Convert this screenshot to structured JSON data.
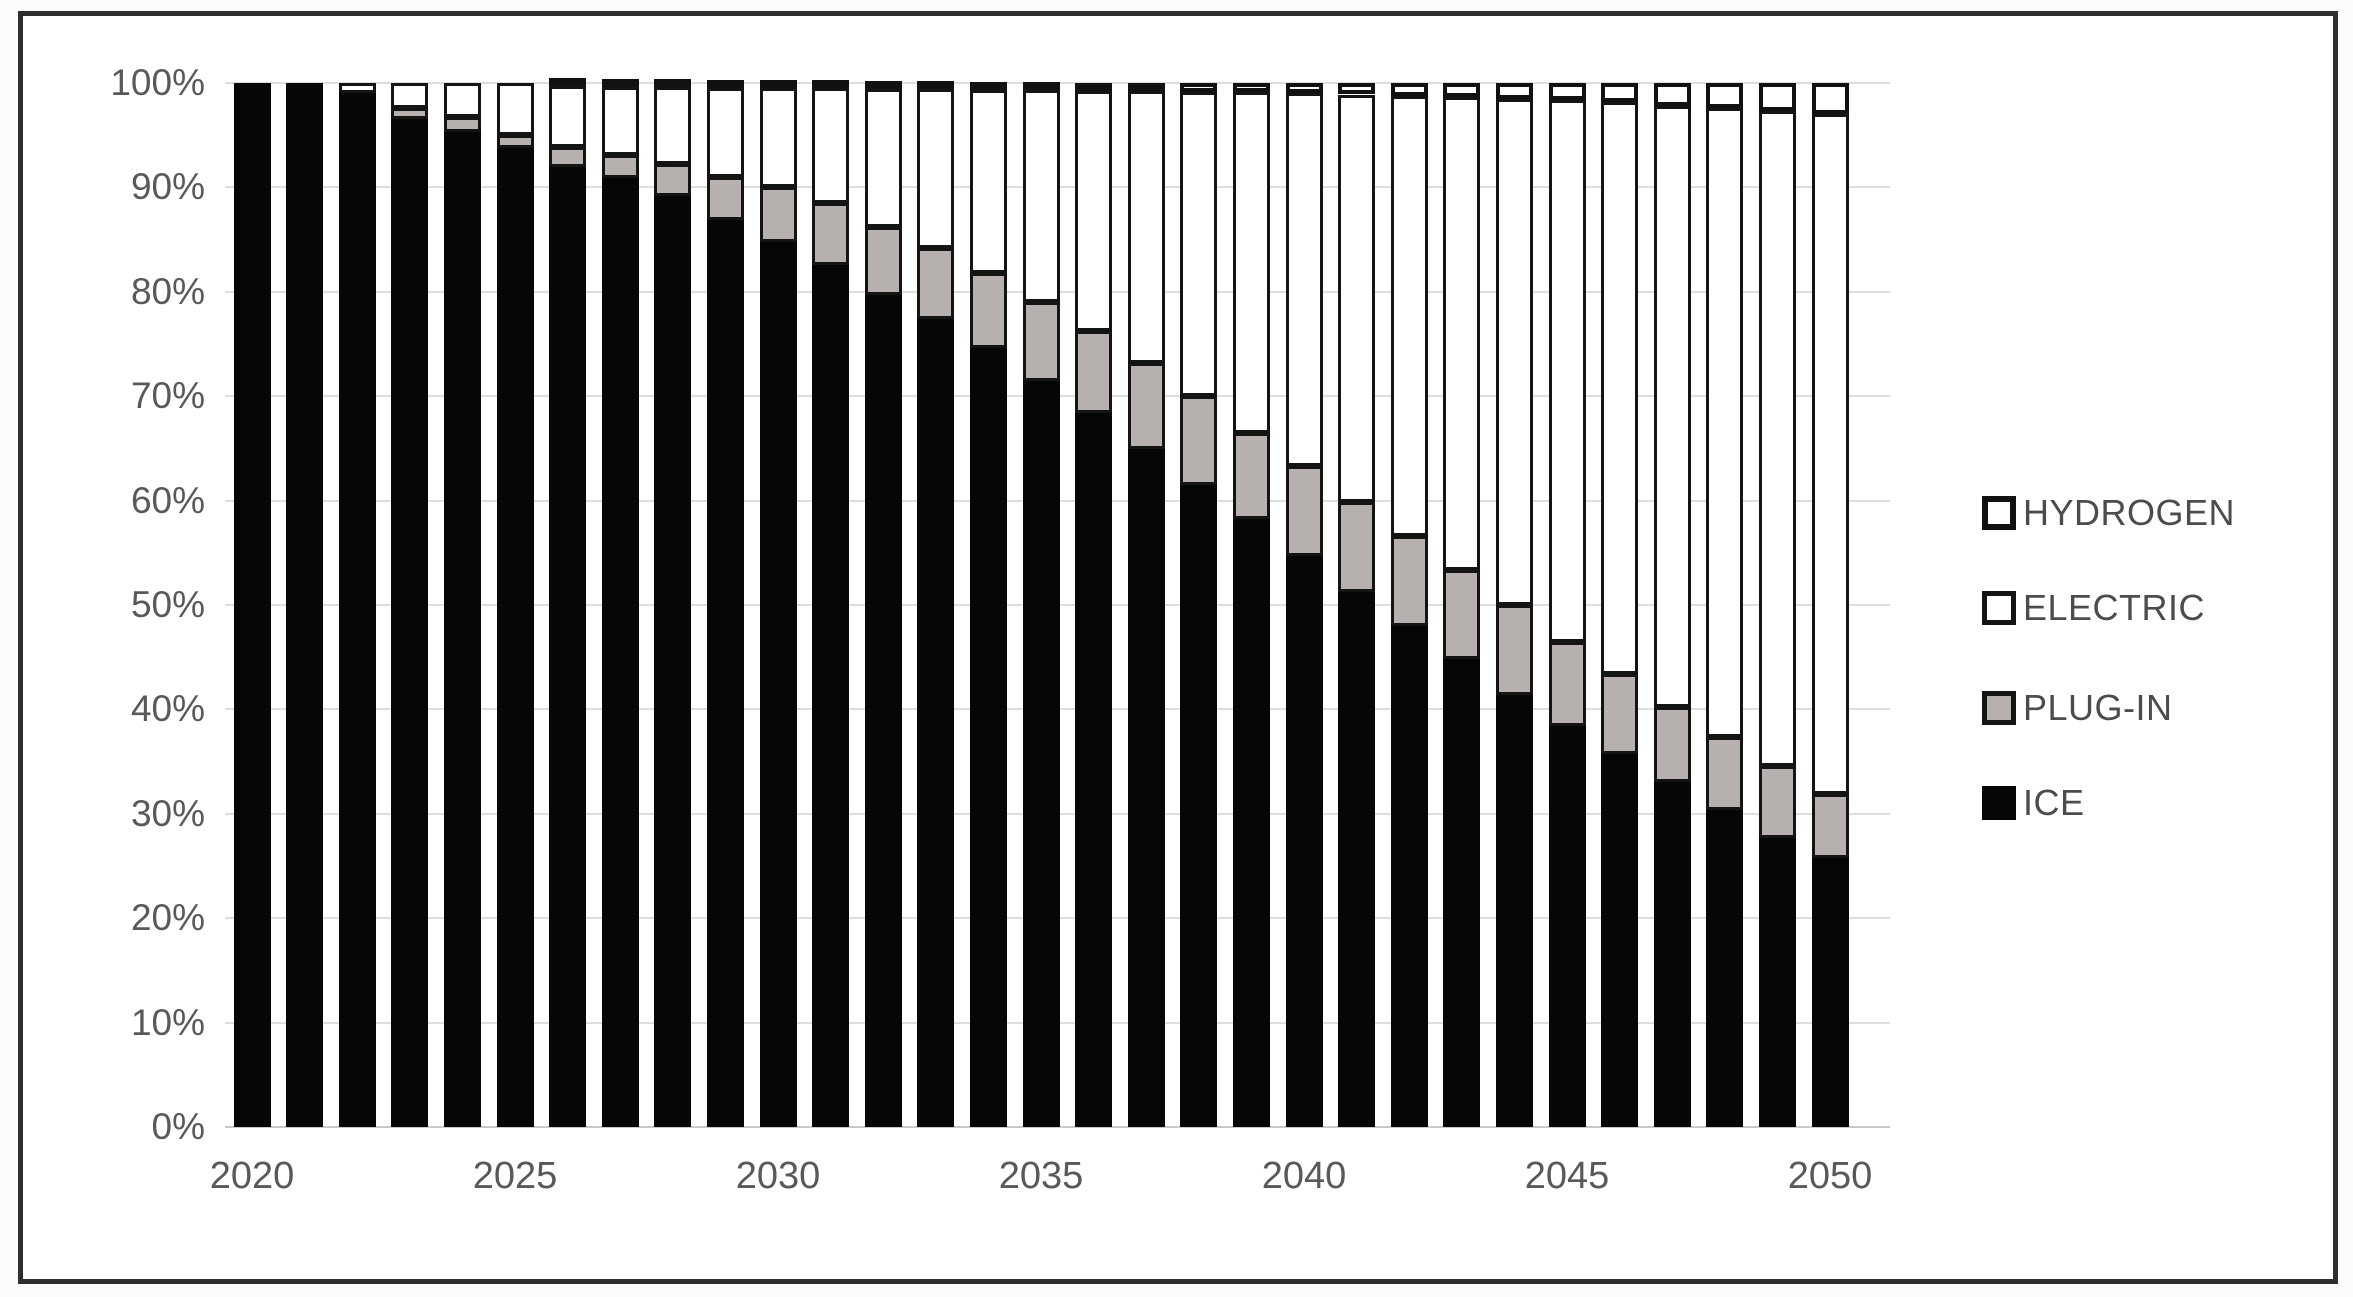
{
  "chart_data": {
    "type": "bar",
    "stacked": true,
    "stacked_mode": "percent",
    "title": "",
    "xlabel": "",
    "ylabel": "",
    "categories": [
      2020,
      2021,
      2022,
      2023,
      2024,
      2025,
      2026,
      2027,
      2028,
      2029,
      2030,
      2031,
      2032,
      2033,
      2034,
      2035,
      2036,
      2037,
      2038,
      2039,
      2040,
      2041,
      2042,
      2043,
      2044,
      2045,
      2046,
      2047,
      2048,
      2049,
      2050
    ],
    "series": [
      {
        "name": "ICE",
        "color": "#060606",
        "border": "#060606",
        "values": [
          100,
          100,
          99,
          96.6,
          95.3,
          93.8,
          92,
          90.9,
          89.2,
          86.9,
          84.8,
          82.6,
          79.7,
          77.4,
          74.6,
          71.5,
          68.4,
          64.9,
          61.5,
          58.2,
          54.7,
          51.2,
          48,
          44.8,
          41.4,
          38.4,
          35.7,
          33,
          30.4,
          27.7,
          25.8
        ]
      },
      {
        "name": "PLUG-IN",
        "color": "#b6b1ae",
        "border": "#141414",
        "values": [
          0,
          0,
          0,
          1.0,
          1.4,
          1.2,
          1.9,
          2.2,
          3.0,
          4.1,
          5.2,
          5.9,
          6.5,
          6.8,
          7.2,
          7.5,
          7.8,
          8.3,
          8.5,
          8.3,
          8.6,
          8.7,
          8.6,
          8.6,
          8.6,
          8.1,
          7.7,
          7.2,
          7.0,
          6.9,
          6.1
        ]
      },
      {
        "name": "ELECTRIC",
        "color": "#ffffff",
        "border": "#141414",
        "values": [
          0,
          0,
          1.0,
          2.4,
          3.3,
          5.0,
          5.8,
          6.5,
          7.4,
          8.5,
          9.5,
          11.0,
          13.2,
          15.2,
          17.5,
          20.3,
          23.0,
          26.0,
          29.1,
          32.6,
          35.7,
          39.0,
          42.2,
          45.3,
          48.5,
          51.9,
          54.8,
          57.6,
          60.2,
          62.7,
          65.1
        ]
      },
      {
        "name": "HYDROGEN",
        "color": "#ffffff",
        "border": "#111111",
        "values": [
          0,
          0,
          0,
          0,
          0,
          0,
          0.3,
          0.4,
          0.4,
          0.5,
          0.5,
          0.5,
          0.6,
          0.6,
          0.7,
          0.7,
          0.8,
          0.8,
          0.9,
          0.9,
          1.0,
          1.1,
          1.2,
          1.3,
          1.5,
          1.6,
          1.8,
          2.2,
          2.4,
          2.7,
          3.0
        ]
      }
    ],
    "y_axis": {
      "min": 0,
      "max": 100,
      "tick_step": 10,
      "tick_labels": [
        "0%",
        "10%",
        "20%",
        "30%",
        "40%",
        "50%",
        "60%",
        "70%",
        "80%",
        "90%",
        "100%"
      ],
      "grid": true,
      "gridline_color": "#dedede"
    },
    "x_axis": {
      "tick_labels": [
        "2020",
        "2025",
        "2030",
        "2035",
        "2040",
        "2045",
        "2050"
      ],
      "tick_years": [
        2020,
        2025,
        2030,
        2035,
        2040,
        2045,
        2050
      ]
    },
    "legend": {
      "position": "right",
      "items": [
        {
          "label": "HYDROGEN",
          "fill": "#ffffff",
          "border": "#111111",
          "border_px": 6
        },
        {
          "label": "ELECTRIC",
          "fill": "#ffffff",
          "border": "#141414",
          "border_px": 5
        },
        {
          "label": "PLUG-IN",
          "fill": "#b6b1ae",
          "border": "#141414",
          "border_px": 5
        },
        {
          "label": "ICE",
          "fill": "#060606",
          "border": "#060606",
          "border_px": 0
        }
      ]
    },
    "frame_color": "#2e2e2e",
    "background_color": "#ffffff"
  }
}
